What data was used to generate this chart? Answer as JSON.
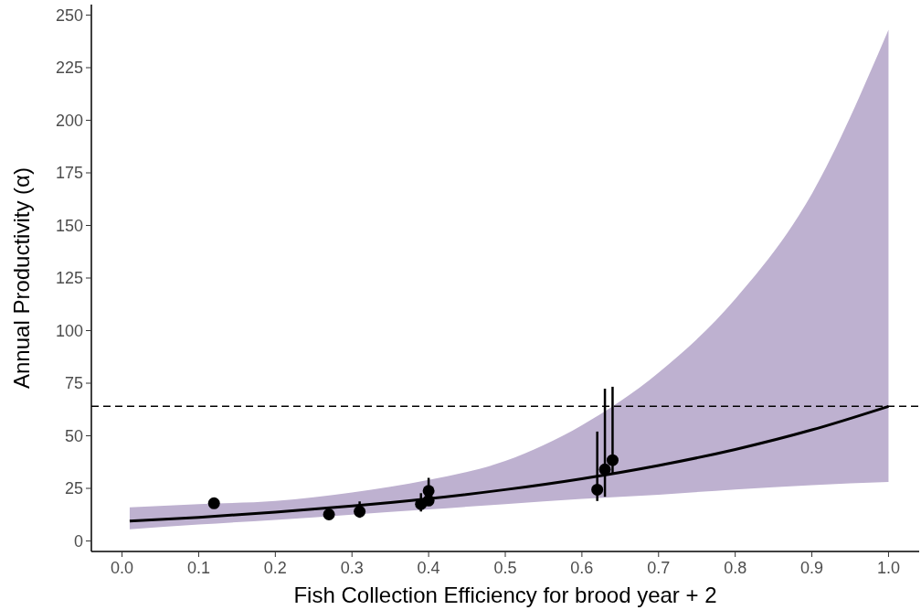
{
  "chart_data": {
    "type": "scatter",
    "xlabel": "Fish Collection Efficiency for brood year + 2",
    "ylabel": "Annual Productivity (α)",
    "xlim": [
      -0.04,
      1.04
    ],
    "xticks": [
      {
        "value": 0,
        "label": "0.0"
      },
      0.1,
      0.2,
      0.3,
      0.4,
      0.5,
      0.6,
      0.7,
      0.8,
      0.9,
      {
        "value": 1,
        "label": "1.0"
      }
    ],
    "ylim": [
      -5,
      255
    ],
    "yticks": [
      0,
      25,
      50,
      75,
      100,
      125,
      150,
      175,
      200,
      225,
      250
    ],
    "grid": false,
    "ref_lines": [
      {
        "axis": "y",
        "value": 64,
        "line_style": "dashed",
        "color": "#000000"
      }
    ],
    "series": [
      {
        "type": "line",
        "color": "#000000",
        "marker": "none",
        "line_style": "solid",
        "x": [
          0.01,
          0.1,
          0.2,
          0.3,
          0.4,
          0.5,
          0.6,
          0.7,
          0.8,
          0.9,
          1.0
        ],
        "values": [
          9.5,
          11.2,
          13.7,
          16.6,
          20.1,
          24.4,
          29.6,
          35.9,
          43.5,
          52.8,
          64
        ],
        "lower": [
          5.5,
          7.8,
          10,
          12.5,
          15,
          17.5,
          20,
          22,
          24.5,
          26.5,
          28
        ],
        "upper": [
          16,
          17.5,
          19,
          23,
          29,
          38,
          55,
          80,
          115,
          165,
          243
        ]
      },
      {
        "color": "#000000",
        "marker": "circle",
        "x": [
          0.12,
          0.27,
          0.31,
          0.39,
          0.4,
          0.4,
          0.62,
          0.63,
          0.64
        ],
        "values": [
          17.9,
          12.6,
          14,
          17.5,
          23.8,
          19.2,
          24.4,
          34,
          38.4
        ],
        "errors": [
          null,
          null,
          [
            11,
            18.8
          ],
          [
            14,
            22.7
          ],
          [
            23.8,
            30
          ],
          null,
          [
            19,
            52
          ],
          [
            21,
            72.4
          ],
          [
            32,
            73.3
          ]
        ]
      }
    ]
  }
}
